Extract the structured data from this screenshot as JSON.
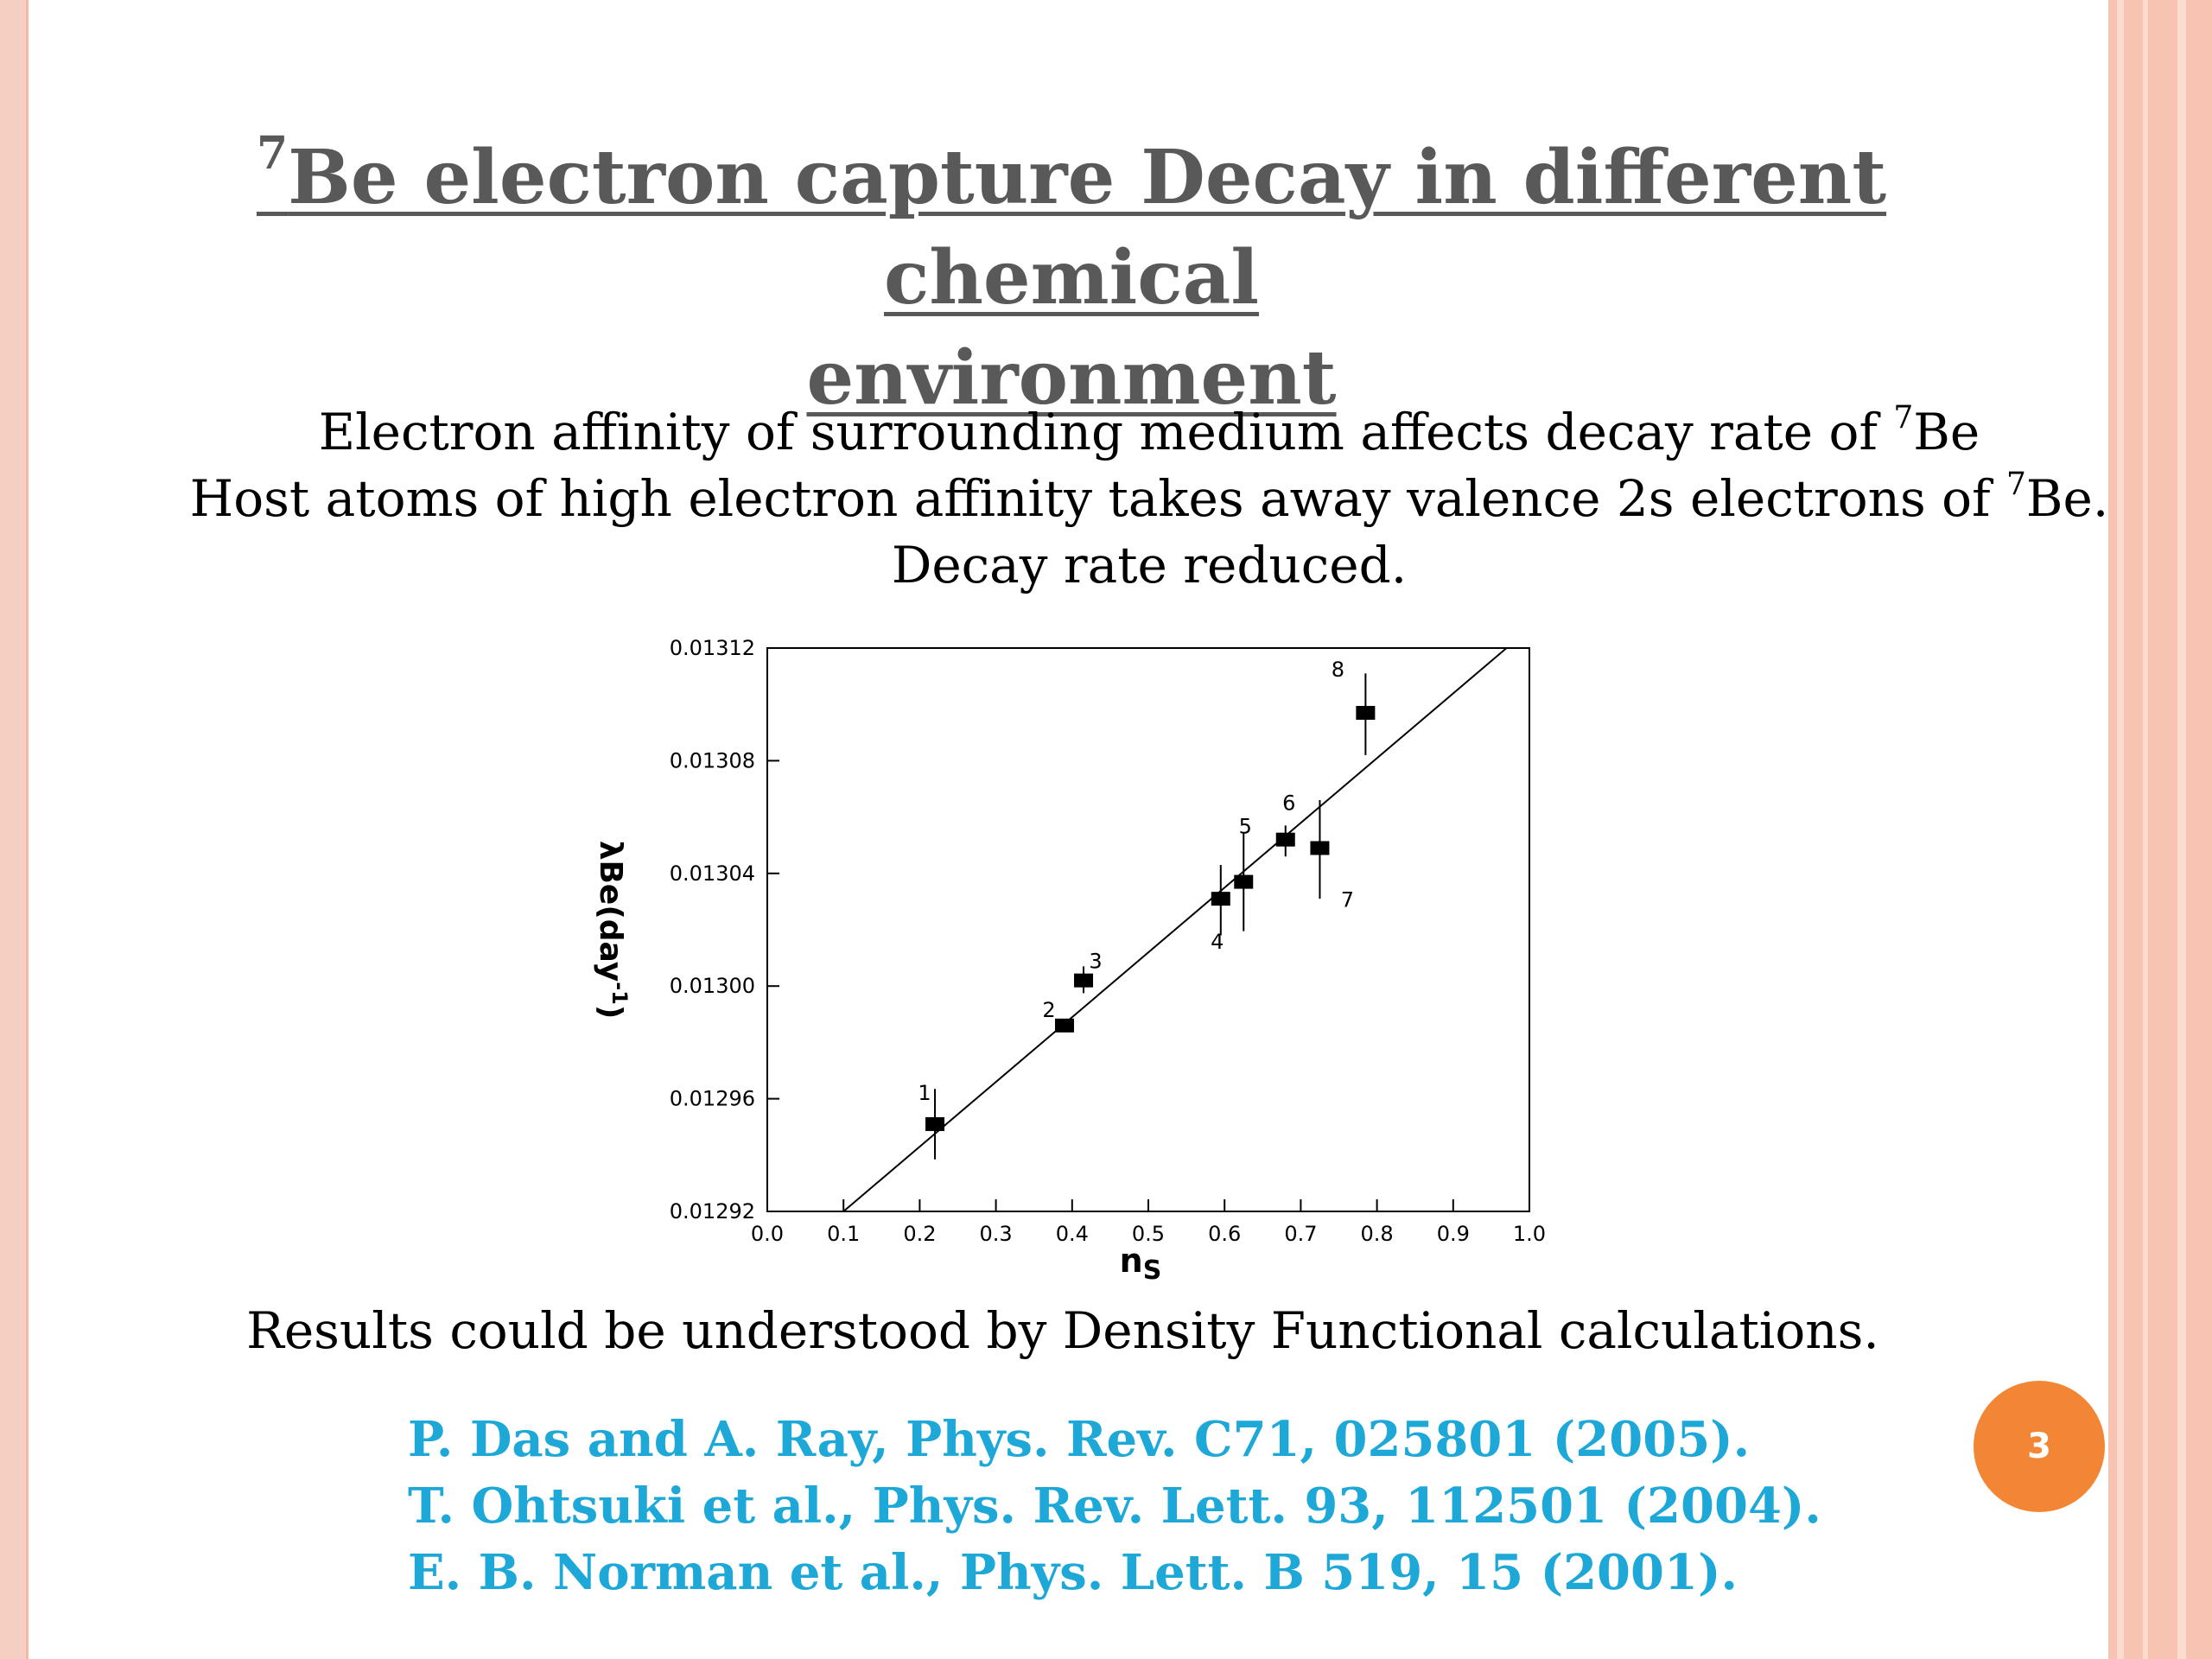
{
  "slide": {
    "title_sup": "7",
    "title_line1": "Be electron capture Decay in different chemical",
    "title_line2": "environment",
    "lines": [
      {
        "pre": "Electron affinity of surrounding medium affects decay rate of ",
        "sup": "7",
        "post": "Be"
      },
      {
        "pre": "Host atoms of high electron affinity takes away valence 2s electrons of ",
        "sup": "7",
        "post": "Be."
      },
      {
        "pre": "Decay rate reduced.",
        "sup": "",
        "post": ""
      }
    ],
    "result": "Results could be understood by Density Functional  calculations.",
    "references": [
      "P. Das and A. Ray, Phys. Rev. C71, 025801 (2005).",
      "T. Ohtsuki et al., Phys. Rev. Lett. 93, 112501 (2004).",
      "E. B. Norman et al., Phys. Lett. B 519, 15 (2001)."
    ],
    "page_number": "3"
  },
  "colors": {
    "title": "#595959",
    "references": "#1ea8d8",
    "page_badge": "#f28634",
    "border": "#f7c4b1"
  },
  "chart_data": {
    "type": "scatter",
    "xlabel": "n",
    "xlabel_sub": "S",
    "ylabel_lambda": "λ",
    "ylabel_main": "Be(day",
    "ylabel_sup": "-1",
    "ylabel_close": ")",
    "xlim": [
      0.0,
      1.0
    ],
    "ylim": [
      0.01292,
      0.01312
    ],
    "x_ticks": [
      "0.0",
      "0.1",
      "0.2",
      "0.3",
      "0.4",
      "0.5",
      "0.6",
      "0.7",
      "0.8",
      "0.9",
      "1.0"
    ],
    "y_ticks": [
      "0.01292",
      "0.01296",
      "0.01300",
      "0.01304",
      "0.01308",
      "0.01312"
    ],
    "points": [
      {
        "label": "1",
        "x": 0.22,
        "y": 0.012951,
        "err_lo": 1.25e-05,
        "err_hi": 1.25e-05
      },
      {
        "label": "2",
        "x": 0.39,
        "y": 0.012986,
        "err_lo": 2e-06,
        "err_hi": 2e-06
      },
      {
        "label": "3",
        "x": 0.415,
        "y": 0.013002,
        "err_lo": 4.5e-06,
        "err_hi": 5e-06
      },
      {
        "label": "4",
        "x": 0.595,
        "y": 0.013031,
        "err_lo": 1.3e-05,
        "err_hi": 1.2e-05
      },
      {
        "label": "5",
        "x": 0.625,
        "y": 0.013037,
        "err_lo": 1.75e-05,
        "err_hi": 1.75e-05
      },
      {
        "label": "6",
        "x": 0.68,
        "y": 0.013052,
        "err_lo": 6e-06,
        "err_hi": 5e-06
      },
      {
        "label": "7",
        "x": 0.725,
        "y": 0.013049,
        "err_lo": 1.8e-05,
        "err_hi": 1.7e-05
      },
      {
        "label": "8",
        "x": 0.785,
        "y": 0.013097,
        "err_lo": 1.5e-05,
        "err_hi": 1.4e-05
      }
    ],
    "fit_line": {
      "x1": 0.1,
      "y1": 0.01292,
      "x2": 0.97,
      "y2": 0.01312
    },
    "grid": false,
    "legend": "none"
  }
}
